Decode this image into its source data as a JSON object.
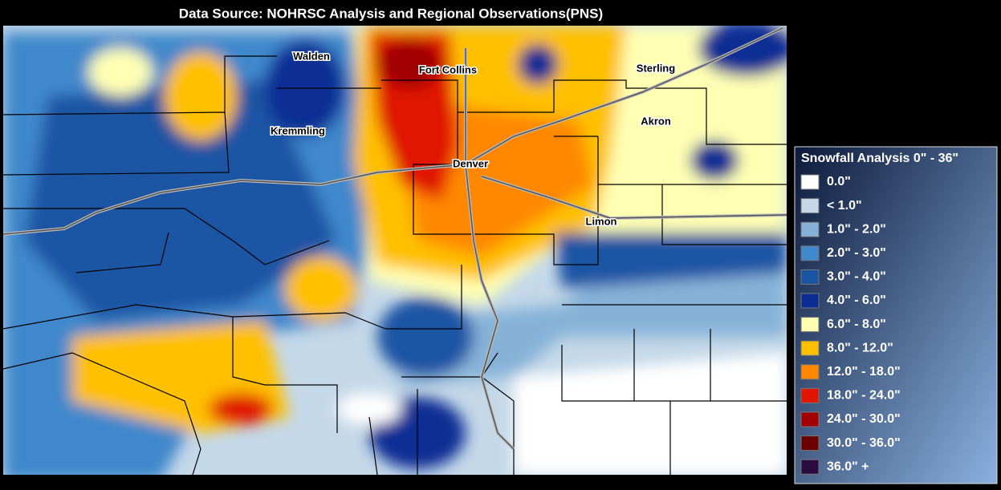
{
  "header": {
    "title": "Data Source: NOHRSC Analysis and Regional Observations(PNS)"
  },
  "cities": [
    {
      "label": "Walden"
    },
    {
      "label": "Fort Collins"
    },
    {
      "label": "Sterling"
    },
    {
      "label": "Kremmling"
    },
    {
      "label": "Akron"
    },
    {
      "label": "Denver"
    },
    {
      "label": "Limon"
    }
  ],
  "legend": {
    "title": "Snowfall Analysis 0\" - 36\"",
    "items": [
      {
        "label": "0.0\"",
        "color": "#ffffff"
      },
      {
        "label": "< 1.0\"",
        "color": "#c4d8e8"
      },
      {
        "label": "1.0\" - 2.0\"",
        "color": "#86b2d8"
      },
      {
        "label": "2.0\" - 3.0\"",
        "color": "#3f88cc"
      },
      {
        "label": "3.0\" - 4.0\"",
        "color": "#1a55a4"
      },
      {
        "label": "4.0\" - 6.0\"",
        "color": "#0a2d94"
      },
      {
        "label": "6.0\" - 8.0\"",
        "color": "#ffffb4"
      },
      {
        "label": "8.0\" - 12.0\"",
        "color": "#ffc000"
      },
      {
        "label": "12.0\" - 18.0\"",
        "color": "#ff8800"
      },
      {
        "label": "18.0\" - 24.0\"",
        "color": "#e01400"
      },
      {
        "label": "24.0\" - 30.0\"",
        "color": "#a00000"
      },
      {
        "label": "30.0\" - 36.0\"",
        "color": "#6a0000"
      },
      {
        "label": "36.0\" +",
        "color": "#2a0c40"
      }
    ]
  }
}
